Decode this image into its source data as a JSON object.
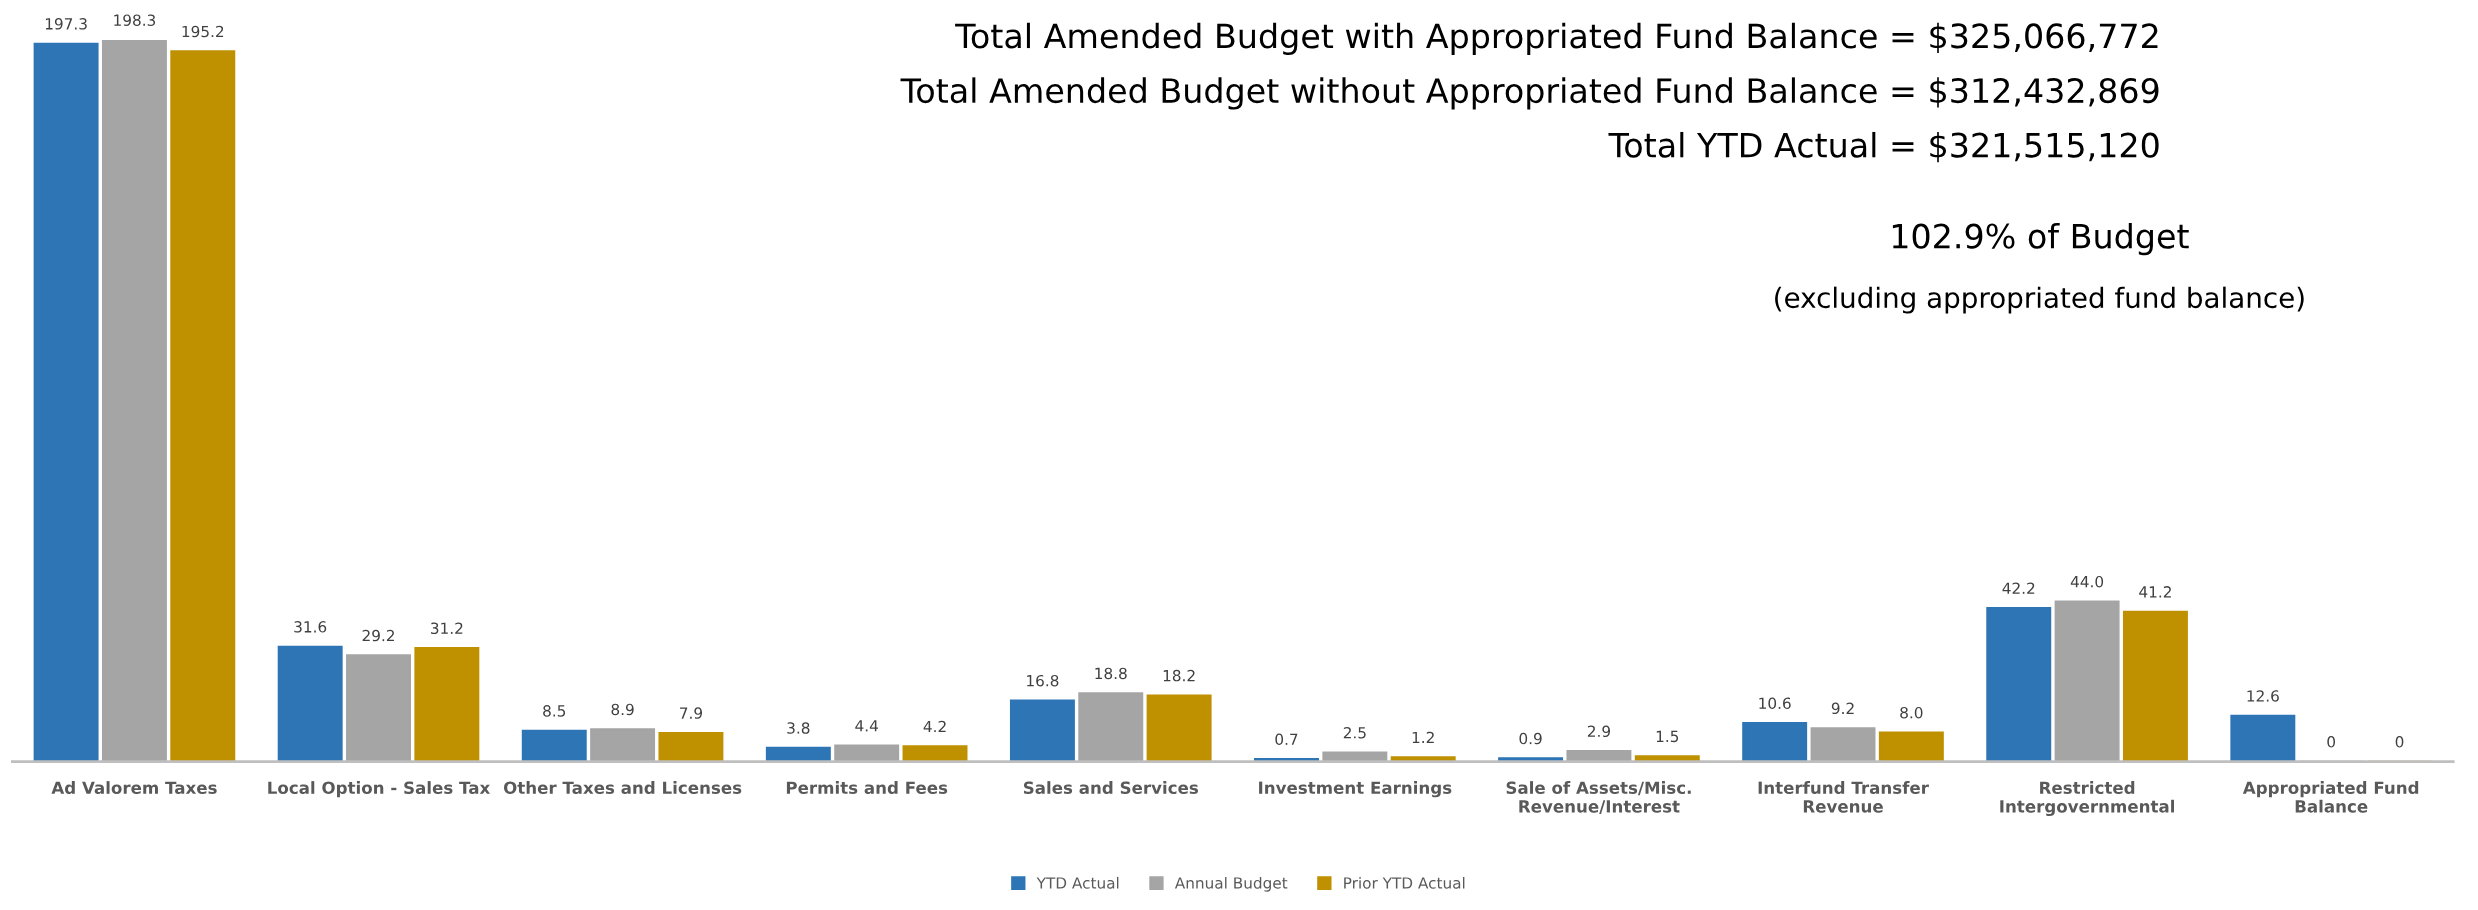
{
  "chart_data": {
    "type": "bar",
    "annotations": [
      "Total Amended Budget with Appropriated Fund Balance = $325,066,772",
      "Total Amended Budget without Appropriated Fund Balance = $312,432,869",
      "Total YTD Actual = $321,515,120",
      "102.9% of Budget",
      "(excluding appropriated fund balance)"
    ],
    "categories": [
      "Ad Valorem Taxes",
      "Local Option - Sales Tax",
      "Other Taxes and Licenses",
      "Permits and Fees",
      "Sales and Services",
      "Investment Earnings",
      "Sale of Assets/Misc.\nRevenue/Interest",
      "Interfund Transfer\nRevenue",
      "Restricted\nIntergovernmental",
      "Appropriated Fund\nBalance"
    ],
    "series": [
      {
        "name": "YTD Actual",
        "color": "#2e75b6",
        "values": [
          197.3,
          31.6,
          8.5,
          3.8,
          16.8,
          0.7,
          0.9,
          10.6,
          42.2,
          12.6
        ],
        "value_labels": [
          "197.3",
          "31.6",
          "8.5",
          "3.8",
          "16.8",
          "0.7",
          "0.9",
          "10.6",
          "42.2",
          "12.6"
        ]
      },
      {
        "name": "Annual Budget",
        "color": "#a5a5a5",
        "values": [
          198.3,
          29.2,
          8.9,
          4.4,
          18.8,
          2.5,
          2.9,
          9.2,
          44.0,
          0
        ],
        "value_labels": [
          "198.3",
          "29.2",
          "8.9",
          "4.4",
          "18.8",
          "2.5",
          "2.9",
          "9.2",
          "44.0",
          "0"
        ]
      },
      {
        "name": "Prior YTD Actual",
        "color": "#bf9000",
        "values": [
          195.2,
          31.2,
          7.9,
          4.2,
          18.2,
          1.2,
          1.5,
          8.0,
          41.2,
          0
        ],
        "value_labels": [
          "195.2",
          "31.2",
          "7.9",
          "4.2",
          "18.2",
          "1.2",
          "1.5",
          "8.0",
          "41.2",
          "0"
        ]
      }
    ],
    "grid": false,
    "legend": "bottom"
  }
}
